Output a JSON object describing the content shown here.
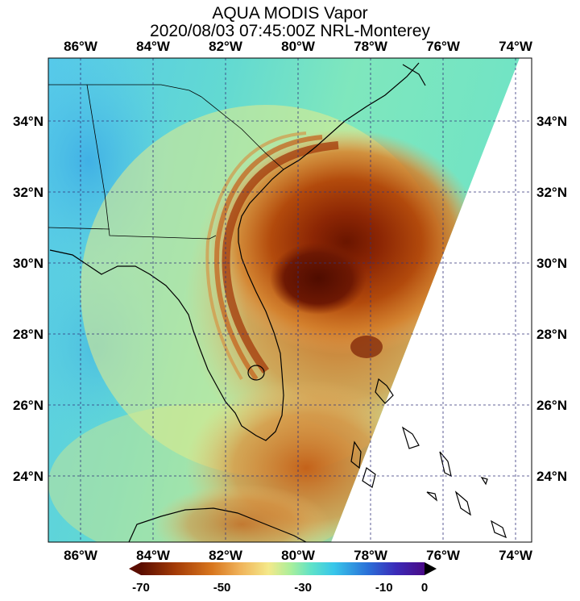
{
  "title": {
    "line1": "AQUA MODIS Vapor",
    "line2": "2020/08/03 07:45:00Z NRL-Monterey"
  },
  "map": {
    "lon_labels": [
      "86°W",
      "84°W",
      "82°W",
      "80°W",
      "78°W",
      "76°W",
      "74°W"
    ],
    "lat_labels": [
      "34°N",
      "32°N",
      "30°N",
      "28°N",
      "26°N",
      "24°N"
    ],
    "lon_values": [
      -86,
      -84,
      -82,
      -80,
      -78,
      -76,
      -74
    ],
    "lat_values": [
      34,
      32,
      30,
      28,
      26,
      24
    ],
    "grid_color": "#33337a",
    "coast_color": "#000000"
  },
  "colorbar": {
    "tick_labels": [
      "-70",
      "-50",
      "-30",
      "-10",
      "0"
    ],
    "tick_values": [
      -70,
      -50,
      -30,
      -10,
      0
    ],
    "range": [
      -70,
      0
    ],
    "colors": [
      "#5a0d00",
      "#a33a06",
      "#d8761e",
      "#f0b35a",
      "#f4e98a",
      "#a8ef9c",
      "#5fe2c8",
      "#38c6ea",
      "#2a70d8",
      "#3b2ab8",
      "#4a0a86"
    ]
  }
}
